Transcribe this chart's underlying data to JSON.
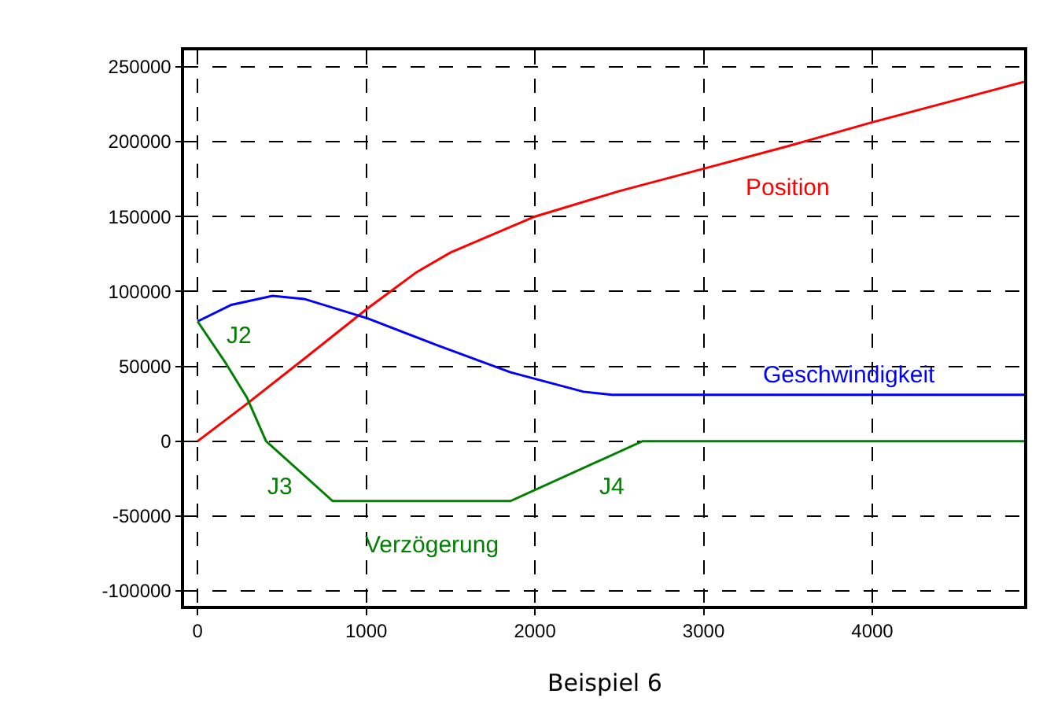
{
  "chart_data": {
    "type": "line",
    "xlim": [
      -80,
      4900
    ],
    "xticks": [
      0,
      1000,
      2000,
      3000,
      4000
    ],
    "ylim": [
      -110000,
      261000
    ],
    "yticks": [
      -100000,
      -50000,
      0,
      50000,
      100000,
      150000,
      200000,
      250000
    ],
    "grid": true,
    "legend": false,
    "marker": "none",
    "line_style": "solid",
    "series": [
      {
        "name": "Position",
        "color": "#ff0000",
        "x": [
          0,
          293,
          632,
          1000,
          1300,
          1500,
          2000,
          2500,
          3000,
          3500,
          4000,
          4900
        ],
        "values": [
          0,
          25000,
          55000,
          88000,
          113000,
          126000,
          150000,
          167000,
          182000,
          197000,
          213000,
          240000
        ]
      },
      {
        "name": "Geschwindigkeit",
        "color": "#0000ff",
        "x": [
          0,
          200,
          444,
          632,
          1008,
          1422,
          1855,
          2288,
          2457,
          4900
        ],
        "values": [
          80000,
          91000,
          97000,
          95000,
          82000,
          64000,
          46000,
          33000,
          31000,
          31000
        ]
      },
      {
        "name": "Verzögerung",
        "color": "#008000",
        "x": [
          0,
          162,
          293,
          406,
          801,
          1855,
          2638,
          4900
        ],
        "values": [
          80000,
          53000,
          29000,
          0,
          -40000,
          -40000,
          0,
          0
        ]
      }
    ],
    "annotations": [
      "J2",
      "J3",
      "J4",
      "Beispiel 6"
    ]
  }
}
